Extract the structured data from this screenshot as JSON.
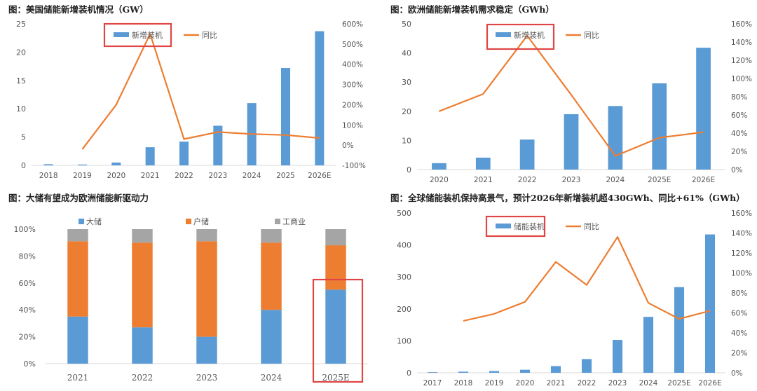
{
  "colors": {
    "bar": "#5b9bd5",
    "line": "#ed7d31",
    "gray": "#a5a5a5",
    "highlight": "#e04545",
    "axis": "#d9d9d9"
  },
  "chart_data": [
    {
      "type": "bar",
      "title": "图：美国储能新增装机情况（GW）",
      "categories": [
        "2018",
        "2019",
        "2020",
        "2021",
        "2022",
        "2023",
        "2024",
        "2025",
        "2026E"
      ],
      "series": [
        {
          "name": "新增装机",
          "type": "bar",
          "axis": "left",
          "values": [
            0.2,
            0.15,
            0.5,
            3.2,
            4.2,
            7.0,
            11.0,
            17.2,
            23.7
          ]
        },
        {
          "name": "同比",
          "type": "line",
          "axis": "right",
          "values": [
            null,
            -20,
            200,
            550,
            30,
            65,
            55,
            50,
            35
          ]
        }
      ],
      "ylim": [
        0,
        25
      ],
      "yticks": [
        0,
        5,
        10,
        15,
        20,
        25
      ],
      "y2lim": [
        -100,
        600
      ],
      "y2ticks": [
        "-100%",
        "0%",
        "100%",
        "200%",
        "300%",
        "400%",
        "500%",
        "600%"
      ],
      "legend": "top-center"
    },
    {
      "type": "bar",
      "title": "图：欧洲储能新增装机需求稳定（GWh）",
      "categories": [
        "2020",
        "2021",
        "2022",
        "2023",
        "2024",
        "2025E",
        "2026E"
      ],
      "series": [
        {
          "name": "新增装机",
          "type": "bar",
          "axis": "left",
          "values": [
            2.2,
            4.1,
            10.3,
            19.0,
            21.8,
            29.6,
            41.8
          ]
        },
        {
          "name": "同比",
          "type": "line",
          "axis": "right",
          "values": [
            64,
            83,
            147,
            82,
            15,
            35,
            41
          ]
        }
      ],
      "ylim": [
        0,
        50
      ],
      "yticks": [
        0,
        10,
        20,
        30,
        40,
        50
      ],
      "y2lim": [
        0,
        160
      ],
      "y2ticks": [
        "0%",
        "20%",
        "40%",
        "60%",
        "80%",
        "100%",
        "120%",
        "140%",
        "160%"
      ],
      "legend": "top-center"
    },
    {
      "type": "bar",
      "stacked": true,
      "title": "图：大储有望成为欧洲储能新驱动力",
      "categories": [
        "2021",
        "2022",
        "2023",
        "2024",
        "2025E"
      ],
      "series": [
        {
          "name": "大储",
          "values": [
            35,
            27,
            20,
            40,
            55
          ]
        },
        {
          "name": "户储",
          "values": [
            56,
            63,
            71,
            50,
            33
          ]
        },
        {
          "name": "工商业",
          "values": [
            9,
            10,
            9,
            10,
            12
          ]
        }
      ],
      "ylim": [
        0,
        100
      ],
      "yticks": [
        "0%",
        "20%",
        "40%",
        "60%",
        "80%",
        "100%"
      ],
      "legend": "top"
    },
    {
      "type": "bar",
      "title": "图：全球储能装机保持高景气，预计2026年新增装机超430GWh、同比+61%（GWh）",
      "categories": [
        "2017",
        "2018",
        "2019",
        "2020",
        "2021",
        "2022",
        "2023",
        "2024",
        "2025E",
        "2026E"
      ],
      "series": [
        {
          "name": "储能装机",
          "type": "bar",
          "axis": "left",
          "values": [
            2,
            3.5,
            5.5,
            9.5,
            21,
            43,
            103,
            175,
            268,
            433
          ]
        },
        {
          "name": "同比",
          "type": "line",
          "axis": "right",
          "values": [
            null,
            52,
            59,
            71,
            111,
            88,
            136,
            70,
            54,
            62
          ]
        }
      ],
      "ylim": [
        0,
        500
      ],
      "yticks": [
        0,
        100,
        200,
        300,
        400,
        500
      ],
      "y2lim": [
        0,
        160
      ],
      "y2ticks": [
        "0%",
        "20%",
        "40%",
        "60%",
        "80%",
        "100%",
        "120%",
        "140%",
        "160%"
      ],
      "legend": "top-center"
    }
  ]
}
